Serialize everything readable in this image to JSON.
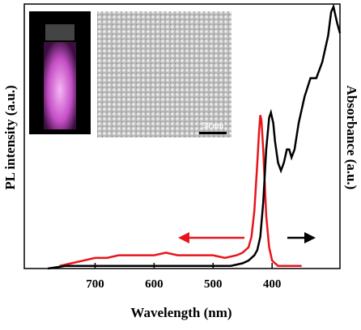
{
  "chart_data": {
    "type": "line",
    "x_label": "Wavelength (nm)",
    "y_label": "PL intensity (a.u.)",
    "y2_label": "Absorbance (a.u.)",
    "inset_scale_label": "50 nm",
    "xlim": [
      820,
      285
    ],
    "xticks": [
      400,
      500,
      600,
      700
    ],
    "ylim": [
      0,
      1
    ],
    "y2lim": [
      0,
      1
    ],
    "series": [
      {
        "name": "PL",
        "color": "#e8141b",
        "axis": "y",
        "x": [
          760,
          740,
          720,
          700,
          680,
          660,
          640,
          620,
          600,
          580,
          560,
          540,
          520,
          500,
          480,
          460,
          450,
          440,
          435,
          430,
          425,
          422,
          420,
          418,
          415,
          412,
          410,
          405,
          400,
          395,
          390,
          380,
          370,
          360,
          350
        ],
        "values": [
          0.01,
          0.02,
          0.03,
          0.04,
          0.04,
          0.05,
          0.05,
          0.05,
          0.05,
          0.06,
          0.05,
          0.05,
          0.05,
          0.05,
          0.04,
          0.05,
          0.06,
          0.08,
          0.12,
          0.22,
          0.4,
          0.52,
          0.58,
          0.56,
          0.45,
          0.3,
          0.2,
          0.08,
          0.03,
          0.02,
          0.01,
          0.01,
          0.01,
          0.01,
          0.01
        ]
      },
      {
        "name": "Absorbance",
        "color": "#000000",
        "axis": "y2",
        "x": [
          780,
          750,
          700,
          650,
          600,
          550,
          500,
          470,
          450,
          440,
          430,
          425,
          420,
          415,
          410,
          405,
          402,
          398,
          395,
          390,
          385,
          380,
          375,
          371,
          367,
          362,
          355,
          345,
          335,
          325,
          315,
          305,
          300,
          296,
          290,
          285
        ],
        "values": [
          0,
          0.01,
          0.01,
          0.01,
          0.01,
          0.01,
          0.01,
          0.01,
          0.02,
          0.03,
          0.05,
          0.07,
          0.12,
          0.25,
          0.45,
          0.57,
          0.59,
          0.55,
          0.48,
          0.4,
          0.37,
          0.4,
          0.45,
          0.45,
          0.42,
          0.45,
          0.55,
          0.65,
          0.72,
          0.72,
          0.78,
          0.88,
          0.97,
          0.99,
          0.93,
          0.89
        ]
      }
    ]
  }
}
